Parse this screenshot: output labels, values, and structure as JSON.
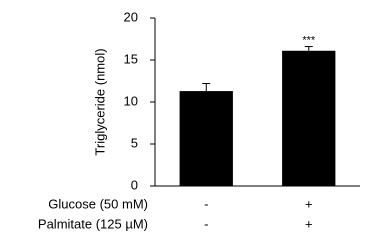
{
  "chart_data": {
    "type": "bar",
    "y_label": "Triglyceride (nmol)",
    "categories": [
      null,
      null
    ],
    "values": [
      11.3,
      16.1
    ],
    "errors": [
      0.9,
      0.5
    ],
    "significance": [
      null,
      "***"
    ],
    "color": "#000000",
    "ylim": [
      0,
      20
    ],
    "yticks": [
      0,
      5,
      10,
      15,
      20
    ],
    "grid": false,
    "conditions": [
      {
        "label": "Glucose (50 mM)",
        "values": [
          "-",
          "+"
        ]
      },
      {
        "label": "Palmitate (125 µM)",
        "values": [
          "-",
          "+"
        ]
      }
    ]
  }
}
